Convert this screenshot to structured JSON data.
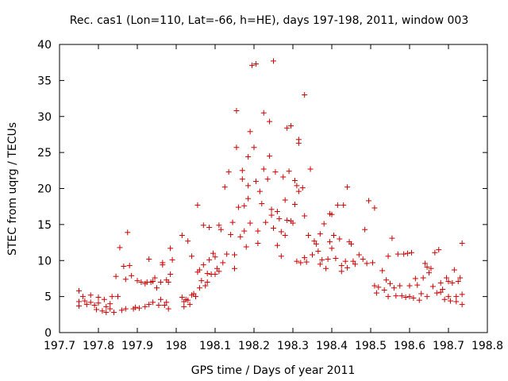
{
  "chart_data": {
    "type": "scatter",
    "title": "Rec. cas1 (Lon=110, Lat=-66, h=HE), days 197-198, 2011, window 003",
    "xlabel": "GPS time / Days of year 2011",
    "ylabel": "STEC from uqrg / TECUs",
    "xlim": [
      197.7,
      198.8
    ],
    "ylim": [
      0,
      40
    ],
    "xticks": [
      197.7,
      197.8,
      197.9,
      198.0,
      198.1,
      198.2,
      198.3,
      198.4,
      198.5,
      198.6,
      198.7,
      198.8
    ],
    "xtick_labels": [
      "197.7",
      "197.8",
      "197.9",
      "198",
      "198.1",
      "198.2",
      "198.3",
      "198.4",
      "198.5",
      "198.6",
      "198.7",
      "198.8"
    ],
    "yticks": [
      0,
      5,
      10,
      15,
      20,
      25,
      30,
      35,
      40
    ],
    "ytick_labels": [
      "0",
      "5",
      "10",
      "15",
      "20",
      "25",
      "30",
      "35",
      "40"
    ],
    "grid": false,
    "legend": "none",
    "marker": "+",
    "color": "#cc0000",
    "series": [
      {
        "name": "STEC",
        "points": [
          [
            197.75,
            5.8
          ],
          [
            197.75,
            4.3
          ],
          [
            197.75,
            3.7
          ],
          [
            197.76,
            5.0
          ],
          [
            197.765,
            4.4
          ],
          [
            197.77,
            3.9
          ],
          [
            197.78,
            5.2
          ],
          [
            197.78,
            4.2
          ],
          [
            197.79,
            3.8
          ],
          [
            197.795,
            3.2
          ],
          [
            197.8,
            4.9
          ],
          [
            197.8,
            4.1
          ],
          [
            197.81,
            3.0
          ],
          [
            197.815,
            4.6
          ],
          [
            197.82,
            3.6
          ],
          [
            197.82,
            2.8
          ],
          [
            197.83,
            4.0
          ],
          [
            197.83,
            3.3
          ],
          [
            197.835,
            5.0
          ],
          [
            197.84,
            2.8
          ],
          [
            197.845,
            7.8
          ],
          [
            197.85,
            5.0
          ],
          [
            197.855,
            11.8
          ],
          [
            197.86,
            3.1
          ],
          [
            197.865,
            9.2
          ],
          [
            197.87,
            7.4
          ],
          [
            197.87,
            3.3
          ],
          [
            197.875,
            13.9
          ],
          [
            197.88,
            9.3
          ],
          [
            197.885,
            7.9
          ],
          [
            197.89,
            3.3
          ],
          [
            197.895,
            3.5
          ],
          [
            197.9,
            7.2
          ],
          [
            197.905,
            3.4
          ],
          [
            197.91,
            7.0
          ],
          [
            197.92,
            6.8
          ],
          [
            197.92,
            3.6
          ],
          [
            197.925,
            7.0
          ],
          [
            197.93,
            10.2
          ],
          [
            197.93,
            3.9
          ],
          [
            197.935,
            7.0
          ],
          [
            197.94,
            7.1
          ],
          [
            197.94,
            4.2
          ],
          [
            197.945,
            7.6
          ],
          [
            197.95,
            6.2
          ],
          [
            197.955,
            3.8
          ],
          [
            197.96,
            7.0
          ],
          [
            197.96,
            4.6
          ],
          [
            197.965,
            9.7
          ],
          [
            197.965,
            9.4
          ],
          [
            197.97,
            3.8
          ],
          [
            197.975,
            4.2
          ],
          [
            197.975,
            7.3
          ],
          [
            197.98,
            7.0
          ],
          [
            197.98,
            3.3
          ],
          [
            197.985,
            8.1
          ],
          [
            197.985,
            11.7
          ],
          [
            197.99,
            10.1
          ],
          [
            198.015,
            13.5
          ],
          [
            198.015,
            4.9
          ],
          [
            198.02,
            4.3
          ],
          [
            198.02,
            3.6
          ],
          [
            198.025,
            4.6
          ],
          [
            198.03,
            12.7
          ],
          [
            198.03,
            4.5
          ],
          [
            198.035,
            3.9
          ],
          [
            198.04,
            10.6
          ],
          [
            198.04,
            5.2
          ],
          [
            198.045,
            5.4
          ],
          [
            198.05,
            5.0
          ],
          [
            198.055,
            17.7
          ],
          [
            198.055,
            8.4
          ],
          [
            198.06,
            8.7
          ],
          [
            198.06,
            6.2
          ],
          [
            198.065,
            7.2
          ],
          [
            198.07,
            14.9
          ],
          [
            198.07,
            9.4
          ],
          [
            198.075,
            6.5
          ],
          [
            198.08,
            8.2
          ],
          [
            198.08,
            7.0
          ],
          [
            198.085,
            14.6
          ],
          [
            198.085,
            10.1
          ],
          [
            198.09,
            8.1
          ],
          [
            198.095,
            11.0
          ],
          [
            198.1,
            10.5
          ],
          [
            198.1,
            8.1
          ],
          [
            198.105,
            8.9
          ],
          [
            198.11,
            14.9
          ],
          [
            198.11,
            8.5
          ],
          [
            198.115,
            14.3
          ],
          [
            198.12,
            9.7
          ],
          [
            198.125,
            20.2
          ],
          [
            198.13,
            10.9
          ],
          [
            198.135,
            22.3
          ],
          [
            198.14,
            13.6
          ],
          [
            198.145,
            15.3
          ],
          [
            198.15,
            10.8
          ],
          [
            198.15,
            8.9
          ],
          [
            198.155,
            30.8
          ],
          [
            198.155,
            25.7
          ],
          [
            198.16,
            17.4
          ],
          [
            198.165,
            13.3
          ],
          [
            198.17,
            22.5
          ],
          [
            198.17,
            21.3
          ],
          [
            198.175,
            17.6
          ],
          [
            198.175,
            14.1
          ],
          [
            198.18,
            11.9
          ],
          [
            198.185,
            20.4
          ],
          [
            198.185,
            18.6
          ],
          [
            198.185,
            24.4
          ],
          [
            198.19,
            27.9
          ],
          [
            198.19,
            15.2
          ],
          [
            198.195,
            37.1
          ],
          [
            198.2,
            25.7
          ],
          [
            198.205,
            37.3
          ],
          [
            198.205,
            21.0
          ],
          [
            198.21,
            14.1
          ],
          [
            198.21,
            12.4
          ],
          [
            198.215,
            19.6
          ],
          [
            198.22,
            17.9
          ],
          [
            198.225,
            30.5
          ],
          [
            198.225,
            22.7
          ],
          [
            198.23,
            15.3
          ],
          [
            198.235,
            21.3
          ],
          [
            198.24,
            29.3
          ],
          [
            198.24,
            24.5
          ],
          [
            198.245,
            17.1
          ],
          [
            198.245,
            16.3
          ],
          [
            198.25,
            37.7
          ],
          [
            198.25,
            14.5
          ],
          [
            198.255,
            22.3
          ],
          [
            198.26,
            16.8
          ],
          [
            198.26,
            12.1
          ],
          [
            198.265,
            15.8
          ],
          [
            198.27,
            14.0
          ],
          [
            198.27,
            10.6
          ],
          [
            198.275,
            21.6
          ],
          [
            198.28,
            18.4
          ],
          [
            198.28,
            13.5
          ],
          [
            198.285,
            28.4
          ],
          [
            198.285,
            15.6
          ],
          [
            198.29,
            22.4
          ],
          [
            198.295,
            28.7
          ],
          [
            198.295,
            15.5
          ],
          [
            198.3,
            15.2
          ],
          [
            198.305,
            21.1
          ],
          [
            198.305,
            17.8
          ],
          [
            198.31,
            20.4
          ],
          [
            198.31,
            9.9
          ],
          [
            198.315,
            26.8
          ],
          [
            198.315,
            26.3
          ],
          [
            198.315,
            19.6
          ],
          [
            198.32,
            9.7
          ],
          [
            198.325,
            20.1
          ],
          [
            198.33,
            33.0
          ],
          [
            198.33,
            16.2
          ],
          [
            198.33,
            10.4
          ],
          [
            198.335,
            9.8
          ],
          [
            198.34,
            13.5
          ],
          [
            198.345,
            22.7
          ],
          [
            198.35,
            10.8
          ],
          [
            198.355,
            12.7
          ],
          [
            198.36,
            12.3
          ],
          [
            198.365,
            11.3
          ],
          [
            198.37,
            13.7
          ],
          [
            198.37,
            9.5
          ],
          [
            198.375,
            10.1
          ],
          [
            198.38,
            15.1
          ],
          [
            198.385,
            8.9
          ],
          [
            198.39,
            10.2
          ],
          [
            198.395,
            16.5
          ],
          [
            198.395,
            12.6
          ],
          [
            198.4,
            16.4
          ],
          [
            198.4,
            11.7
          ],
          [
            198.405,
            13.5
          ],
          [
            198.41,
            10.3
          ],
          [
            198.415,
            17.7
          ],
          [
            198.42,
            13.0
          ],
          [
            198.425,
            9.3
          ],
          [
            198.425,
            8.5
          ],
          [
            198.43,
            17.7
          ],
          [
            198.435,
            9.9
          ],
          [
            198.44,
            20.2
          ],
          [
            198.44,
            9.0
          ],
          [
            198.445,
            12.6
          ],
          [
            198.45,
            12.3
          ],
          [
            198.455,
            9.9
          ],
          [
            198.46,
            9.5
          ],
          [
            198.47,
            10.8
          ],
          [
            198.48,
            10.2
          ],
          [
            198.485,
            14.3
          ],
          [
            198.49,
            9.6
          ],
          [
            198.495,
            18.3
          ],
          [
            198.505,
            9.7
          ],
          [
            198.51,
            17.3
          ],
          [
            198.51,
            6.5
          ],
          [
            198.515,
            5.5
          ],
          [
            198.52,
            6.3
          ],
          [
            198.53,
            8.6
          ],
          [
            198.535,
            5.9
          ],
          [
            198.54,
            7.3
          ],
          [
            198.545,
            10.6
          ],
          [
            198.545,
            5.0
          ],
          [
            198.55,
            6.8
          ],
          [
            198.555,
            13.1
          ],
          [
            198.56,
            6.2
          ],
          [
            198.565,
            5.1
          ],
          [
            198.57,
            10.9
          ],
          [
            198.575,
            6.5
          ],
          [
            198.58,
            5.1
          ],
          [
            198.585,
            10.9
          ],
          [
            198.59,
            4.9
          ],
          [
            198.595,
            11.0
          ],
          [
            198.6,
            6.5
          ],
          [
            198.6,
            5.0
          ],
          [
            198.605,
            11.1
          ],
          [
            198.61,
            4.8
          ],
          [
            198.615,
            7.5
          ],
          [
            198.62,
            6.6
          ],
          [
            198.625,
            4.5
          ],
          [
            198.63,
            5.4
          ],
          [
            198.635,
            7.6
          ],
          [
            198.64,
            9.6
          ],
          [
            198.645,
            9.1
          ],
          [
            198.645,
            5.0
          ],
          [
            198.65,
            8.3
          ],
          [
            198.655,
            8.9
          ],
          [
            198.66,
            6.4
          ],
          [
            198.665,
            11.1
          ],
          [
            198.67,
            5.5
          ],
          [
            198.675,
            11.5
          ],
          [
            198.68,
            6.9
          ],
          [
            198.68,
            5.6
          ],
          [
            198.685,
            6.0
          ],
          [
            198.69,
            4.6
          ],
          [
            198.695,
            7.6
          ],
          [
            198.7,
            7.1
          ],
          [
            198.7,
            5.0
          ],
          [
            198.705,
            4.4
          ],
          [
            198.71,
            6.9
          ],
          [
            198.715,
            8.7
          ],
          [
            198.72,
            5.0
          ],
          [
            198.72,
            4.3
          ],
          [
            198.725,
            7.1
          ],
          [
            198.73,
            7.6
          ],
          [
            198.735,
            12.4
          ],
          [
            198.735,
            5.3
          ],
          [
            198.735,
            3.9
          ]
        ]
      }
    ]
  }
}
